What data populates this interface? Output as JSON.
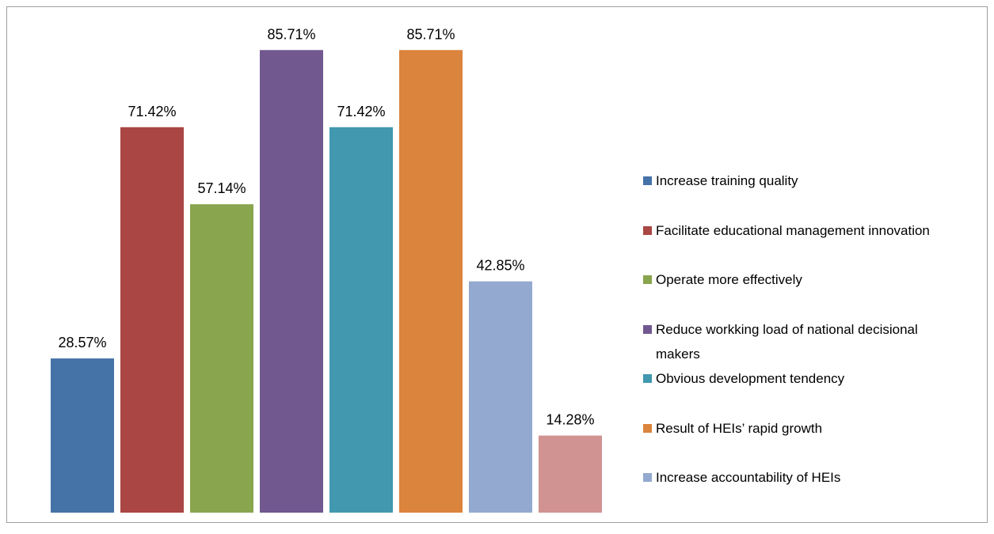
{
  "chart_data": {
    "type": "bar",
    "series": [
      {
        "name": "Increase training quality",
        "color": "#4572a7",
        "values": [
          28.57
        ],
        "value_labels": [
          "28.57%"
        ]
      },
      {
        "name": "Facilitate educational management innovation",
        "color": "#aa4643",
        "values": [
          71.42
        ],
        "value_labels": [
          "71.42%"
        ]
      },
      {
        "name": "Operate more effectively",
        "color": "#89a54e",
        "values": [
          57.14
        ],
        "value_labels": [
          "57.14%"
        ]
      },
      {
        "name": "Reduce workking load of national decisional makers",
        "color": "#71588f",
        "values": [
          85.71
        ],
        "value_labels": [
          "85.71%"
        ]
      },
      {
        "name": "Obvious development tendency",
        "color": "#4198af",
        "values": [
          71.42
        ],
        "value_labels": [
          "71.42%"
        ]
      },
      {
        "name": "Result of HEIs’ rapid growth",
        "color": "#db843d",
        "values": [
          85.71
        ],
        "value_labels": [
          "85.71%"
        ]
      },
      {
        "name": "Increase accountability of HEIs",
        "color": "#93a9cf",
        "values": [
          42.85
        ],
        "value_labels": [
          "42.85%"
        ]
      },
      {
        "color": "#d19392",
        "values": [
          14.28
        ],
        "value_labels": [
          "14.28%"
        ]
      }
    ],
    "ylim": [
      0,
      90
    ]
  }
}
